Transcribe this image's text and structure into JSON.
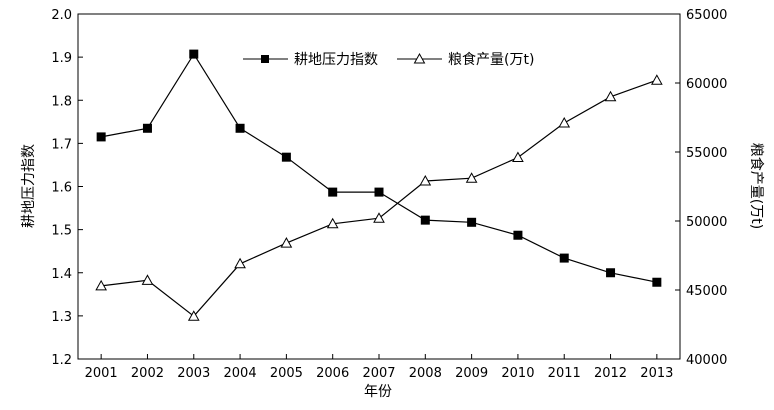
{
  "chart_data": {
    "type": "line",
    "title": "",
    "xlabel": "年份",
    "ylabel_left": "耕地压力指数",
    "ylabel_right": "粮食产量(万t)",
    "x": [
      "2001",
      "2002",
      "2003",
      "2004",
      "2005",
      "2006",
      "2007",
      "2008",
      "2009",
      "2010",
      "2011",
      "2012",
      "2013"
    ],
    "ylim_left": [
      1.2,
      2.0
    ],
    "yticks_left": [
      "1.2",
      "1.3",
      "1.4",
      "1.5",
      "1.6",
      "1.7",
      "1.8",
      "1.9",
      "2.0"
    ],
    "ylim_right": [
      40000,
      65000
    ],
    "yticks_right": [
      "40000",
      "45000",
      "50000",
      "55000",
      "60000",
      "65000"
    ],
    "grid": false,
    "legend_position": "top-center",
    "series": [
      {
        "name": "耕地压力指数",
        "axis": "left",
        "marker": "filled-square",
        "color": "#000000",
        "values": [
          1.715,
          1.735,
          1.907,
          1.735,
          1.668,
          1.587,
          1.587,
          1.522,
          1.517,
          1.487,
          1.434,
          1.4,
          1.378
        ]
      },
      {
        "name": "粮食产量(万t)",
        "axis": "right",
        "marker": "open-triangle",
        "color": "#000000",
        "values": [
          45300,
          45700,
          43100,
          46900,
          48400,
          49800,
          50200,
          52900,
          53100,
          54600,
          57100,
          59000,
          60200
        ]
      }
    ]
  }
}
